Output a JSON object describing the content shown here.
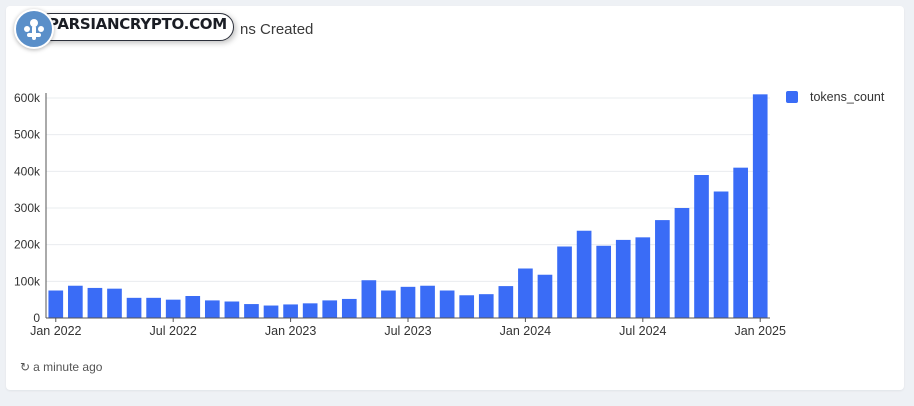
{
  "card": {
    "title": "ns Created",
    "updated_icon": "refresh-icon",
    "updated_text": "a minute ago"
  },
  "watermark": {
    "text": "PARSIANCRYPTO.COM"
  },
  "colors": {
    "bar": "#3a6cf6",
    "grid": "#e9ecef",
    "axis": "#555555"
  },
  "chart_data": {
    "type": "bar",
    "categories": [
      "2022-01",
      "2022-02",
      "2022-03",
      "2022-04",
      "2022-05",
      "2022-06",
      "2022-07",
      "2022-08",
      "2022-09",
      "2022-10",
      "2022-11",
      "2022-12",
      "2023-01",
      "2023-02",
      "2023-03",
      "2023-04",
      "2023-05",
      "2023-06",
      "2023-07",
      "2023-08",
      "2023-09",
      "2023-10",
      "2023-11",
      "2023-12",
      "2024-01",
      "2024-02",
      "2024-03",
      "2024-04",
      "2024-05",
      "2024-06",
      "2024-07",
      "2024-08",
      "2024-09",
      "2024-10",
      "2024-11",
      "2024-12",
      "2025-01"
    ],
    "series": [
      {
        "name": "tokens_count",
        "values": [
          75000,
          88000,
          82000,
          80000,
          55000,
          55000,
          50000,
          60000,
          48000,
          45000,
          38000,
          34000,
          37000,
          40000,
          48000,
          52000,
          103000,
          75000,
          85000,
          88000,
          75000,
          62000,
          65000,
          87000,
          135000,
          118000,
          195000,
          238000,
          197000,
          213000,
          220000,
          267000,
          300000,
          390000,
          345000,
          410000,
          610000
        ]
      }
    ],
    "x_tick_labels": [
      "Jan 2022",
      "Jul 2022",
      "Jan 2023",
      "Jul 2023",
      "Jan 2024",
      "Jul 2024",
      "Jan 2025"
    ],
    "y_tick_labels": [
      "0",
      "100k",
      "200k",
      "300k",
      "400k",
      "500k",
      "600k"
    ],
    "y_ticks": [
      0,
      100000,
      200000,
      300000,
      400000,
      500000,
      600000
    ],
    "ylim": [
      0,
      600000
    ],
    "grid": true,
    "legend_position": "top-right"
  }
}
